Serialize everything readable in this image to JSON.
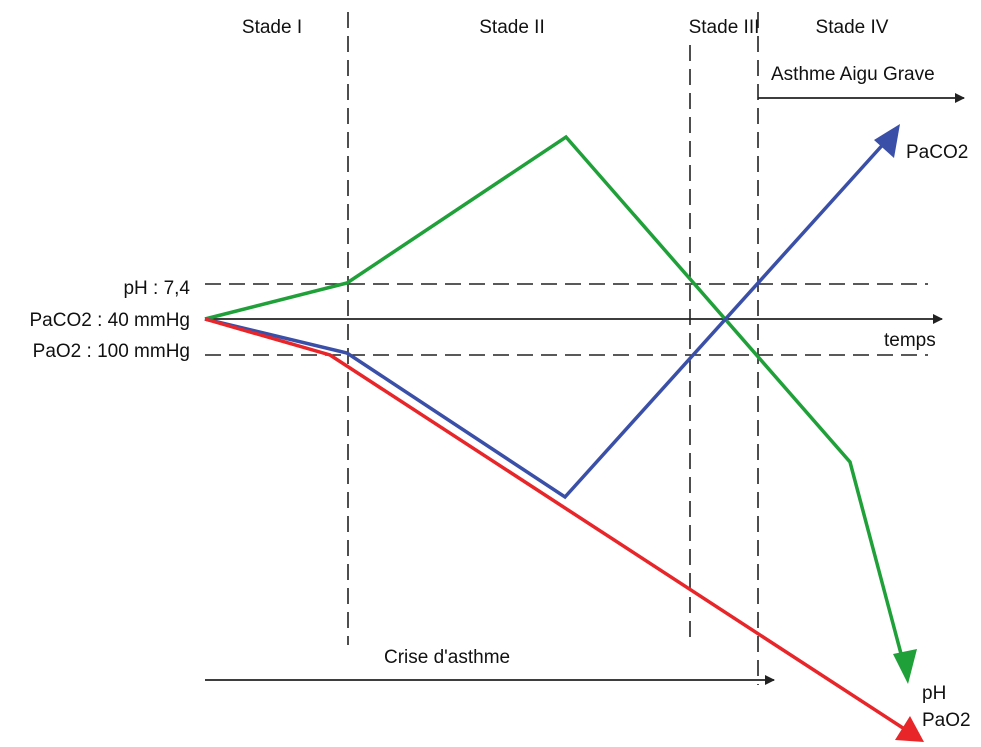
{
  "stages": [
    "Stade I",
    "Stade II",
    "Stade III",
    "Stade IV"
  ],
  "baseline_labels": {
    "ph": "pH : 7,4",
    "paco2": "PaCO2 : 40 mmHg",
    "pao2": "PaO2 : 100 mmHg"
  },
  "time_axis_label": "temps",
  "severe_asthma_label": "Asthme Aigu Grave",
  "asthma_attack_label": "Crise d'asthme",
  "curves": {
    "ph": {
      "label": "pH",
      "color": "#1fa038"
    },
    "paco2": {
      "label": "PaCO2",
      "color": "#3a4fa8"
    },
    "pao2": {
      "label": "PaO2",
      "color": "#e8262a"
    }
  }
}
